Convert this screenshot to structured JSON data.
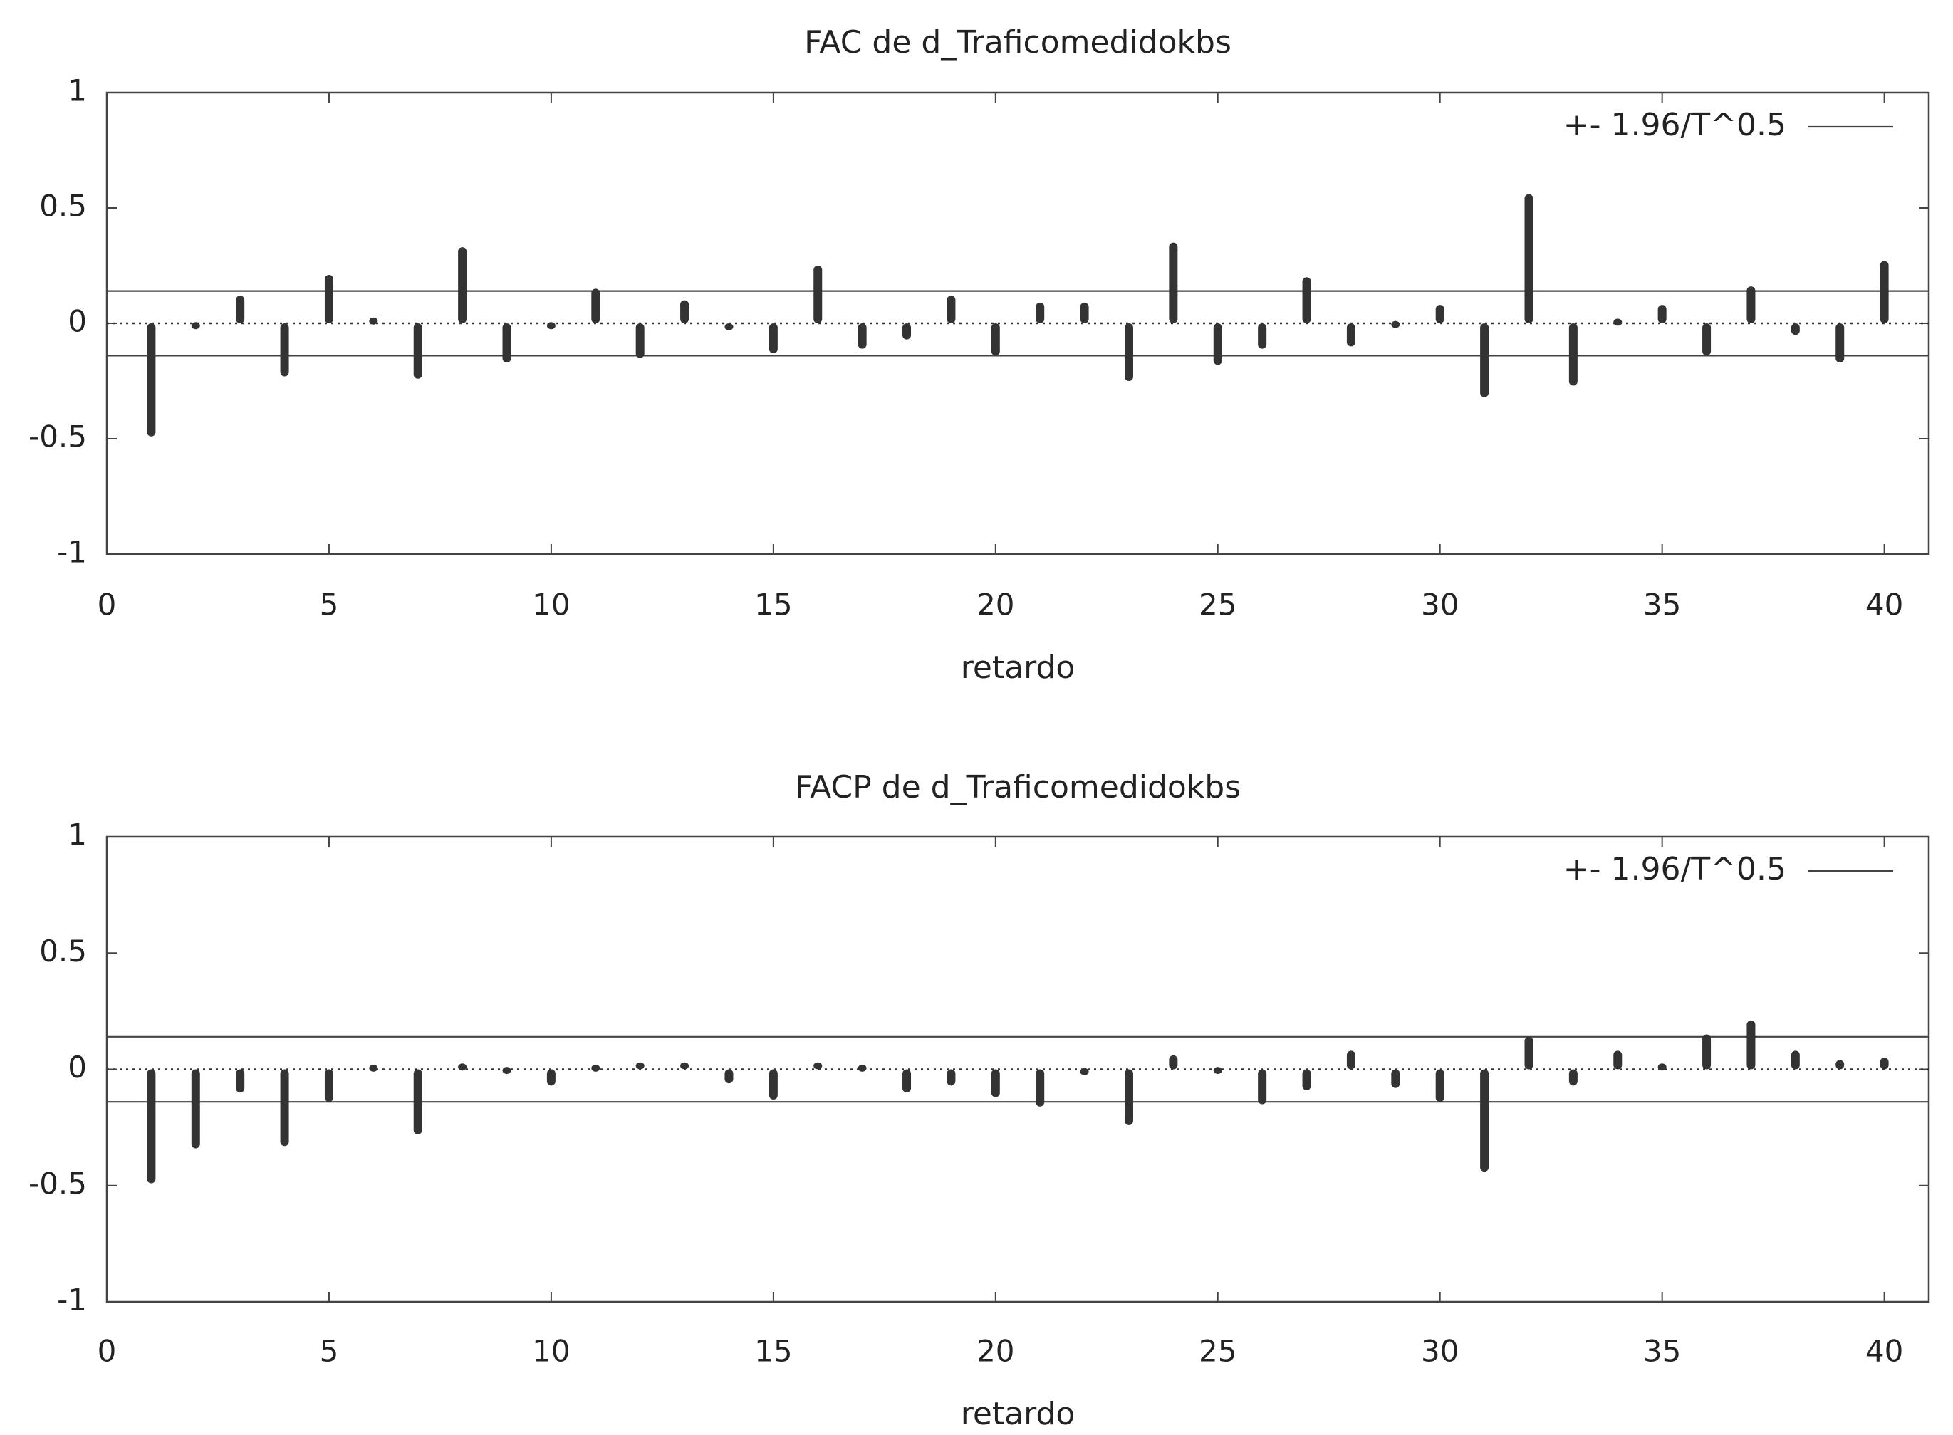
{
  "chart_data": [
    {
      "type": "bar",
      "title": "FAC de d_Traficomedidokbs",
      "xlabel": "retardo",
      "ylabel": "",
      "xlim": [
        0,
        41
      ],
      "ylim": [
        -1,
        1
      ],
      "x_ticks": [
        0,
        5,
        10,
        15,
        20,
        25,
        30,
        35,
        40
      ],
      "x_tick_labels": [
        "0",
        "5",
        "10",
        "15",
        "20",
        "25",
        "30",
        "35",
        "40"
      ],
      "y_ticks": [
        -1,
        -0.5,
        0,
        0.5,
        1
      ],
      "y_tick_labels": [
        "-1",
        "-0.5",
        "0",
        "0.5",
        "1"
      ],
      "confidence_band": 0.14,
      "legend": [
        "+- 1.96/T^0.5"
      ],
      "legend_position": "top-right",
      "zero_line": "dotted",
      "bar_color": "#333333",
      "band_color": "#444444",
      "x": [
        1,
        2,
        3,
        4,
        5,
        6,
        7,
        8,
        9,
        10,
        11,
        12,
        13,
        14,
        15,
        16,
        17,
        18,
        19,
        20,
        21,
        22,
        23,
        24,
        25,
        26,
        27,
        28,
        29,
        30,
        31,
        32,
        33,
        34,
        35,
        36,
        37,
        38,
        39,
        40
      ],
      "values": [
        -0.49,
        -0.02,
        0.12,
        -0.23,
        0.21,
        0.02,
        -0.24,
        0.33,
        -0.17,
        -0.02,
        0.15,
        -0.15,
        0.1,
        -0.03,
        -0.13,
        0.25,
        -0.11,
        -0.07,
        0.12,
        -0.14,
        0.09,
        0.09,
        -0.25,
        0.35,
        -0.18,
        -0.11,
        0.2,
        -0.1,
        -0.01,
        0.08,
        -0.32,
        0.56,
        -0.27,
        0.01,
        0.08,
        -0.14,
        0.16,
        -0.05,
        -0.17,
        0.27
      ]
    },
    {
      "type": "bar",
      "title": "FACP de d_Traficomedidokbs",
      "xlabel": "retardo",
      "ylabel": "",
      "xlim": [
        0,
        41
      ],
      "ylim": [
        -1,
        1
      ],
      "x_ticks": [
        0,
        5,
        10,
        15,
        20,
        25,
        30,
        35,
        40
      ],
      "x_tick_labels": [
        "0",
        "5",
        "10",
        "15",
        "20",
        "25",
        "30",
        "35",
        "40"
      ],
      "y_ticks": [
        -1,
        -0.5,
        0,
        0.5,
        1
      ],
      "y_tick_labels": [
        "-1",
        "-0.5",
        "0",
        "0.5",
        "1"
      ],
      "confidence_band": 0.14,
      "legend": [
        "+- 1.96/T^0.5"
      ],
      "legend_position": "top-right",
      "zero_line": "dotted",
      "bar_color": "#333333",
      "band_color": "#444444",
      "x": [
        1,
        2,
        3,
        4,
        5,
        6,
        7,
        8,
        9,
        10,
        11,
        12,
        13,
        14,
        15,
        16,
        17,
        18,
        19,
        20,
        21,
        22,
        23,
        24,
        25,
        26,
        27,
        28,
        29,
        30,
        31,
        32,
        33,
        34,
        35,
        36,
        37,
        38,
        39,
        40
      ],
      "values": [
        -0.49,
        -0.34,
        -0.1,
        -0.33,
        -0.14,
        0.01,
        -0.28,
        0.02,
        -0.01,
        -0.07,
        0.01,
        0.03,
        0.03,
        -0.06,
        -0.13,
        0.03,
        0.01,
        -0.1,
        -0.07,
        -0.12,
        -0.16,
        -0.02,
        -0.24,
        0.06,
        -0.01,
        -0.15,
        -0.09,
        0.08,
        -0.08,
        -0.14,
        -0.44,
        0.14,
        -0.07,
        0.08,
        0.02,
        0.15,
        0.21,
        0.08,
        0.04,
        0.05
      ]
    }
  ]
}
